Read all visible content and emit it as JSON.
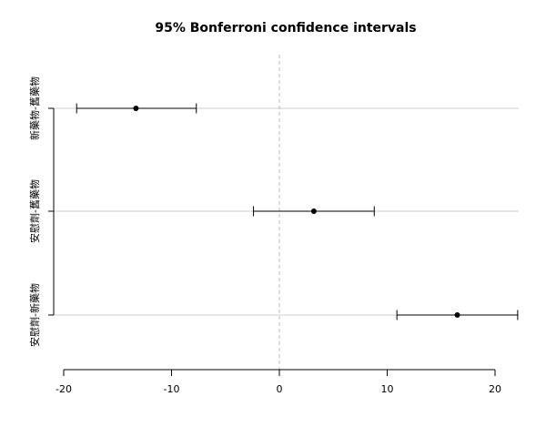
{
  "chart_data": {
    "type": "interval",
    "title": "95% Bonferroni confidence intervals",
    "xlabel": "",
    "ylabel": "",
    "xlim": [
      -20,
      22
    ],
    "x_ticks": [
      -20,
      -10,
      0,
      10,
      20
    ],
    "reference_line": 0,
    "grid": "horizontal at categories",
    "categories": [
      "新藥物-舊藥物",
      "安慰劑-舊藥物",
      "安慰劑-新藥物"
    ],
    "estimates": [
      -13.3,
      3.2,
      16.5
    ],
    "lower": [
      -18.8,
      -2.4,
      10.9
    ],
    "upper": [
      -7.7,
      8.8,
      22.1
    ],
    "colors": {
      "point": "#000000",
      "interval": "#000000",
      "grid": "#cccccc",
      "reference": "#bbbbbb"
    }
  }
}
